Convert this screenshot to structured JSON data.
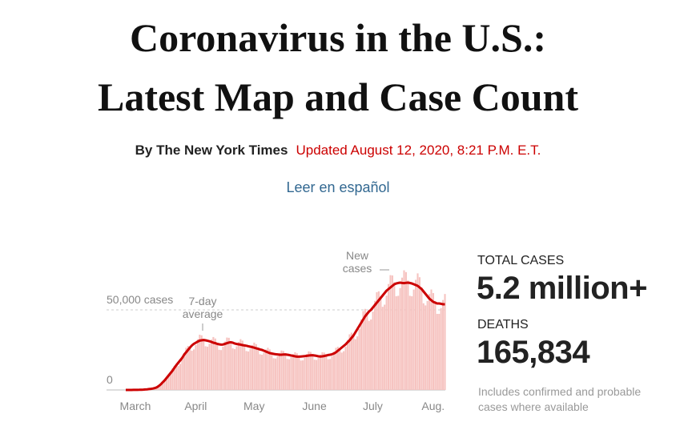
{
  "header": {
    "title": [
      "Coronavirus in the U.S.:",
      "Latest Map and Case Count"
    ],
    "byline": "By The New York Times",
    "updated": "Updated August 12, 2020, 8:21 P.M. E.T.",
    "language_link": "Leer en español"
  },
  "stats": {
    "cases_label": "TOTAL CASES",
    "cases_value": "5.2 million+",
    "deaths_label": "DEATHS",
    "deaths_value": "165,834",
    "note": "Includes confirmed and probable cases where available"
  },
  "chart_data": {
    "type": "bar-line",
    "categories": [
      "March",
      null,
      null,
      null,
      null,
      null,
      null,
      null,
      null,
      null,
      null,
      null,
      null,
      null,
      null,
      null,
      null,
      null,
      null,
      null,
      null,
      null,
      null,
      null,
      null,
      null,
      null,
      null,
      null,
      null,
      null,
      "April",
      null,
      null,
      null,
      null,
      null,
      null,
      null,
      null,
      null,
      null,
      null,
      null,
      null,
      null,
      null,
      null,
      null,
      null,
      null,
      null,
      null,
      null,
      null,
      null,
      null,
      null,
      null,
      null,
      null,
      "May",
      null,
      null,
      null,
      null,
      null,
      null,
      null,
      null,
      null,
      null,
      null,
      null,
      null,
      null,
      null,
      null,
      null,
      null,
      null,
      null,
      null,
      null,
      null,
      null,
      null,
      null,
      null,
      null,
      null,
      null,
      "June",
      null,
      null,
      null,
      null,
      null,
      null,
      null,
      null,
      null,
      null,
      null,
      null,
      null,
      null,
      null,
      null,
      null,
      null,
      null,
      null,
      null,
      null,
      null,
      null,
      null,
      null,
      null,
      null,
      null,
      "July",
      null,
      null,
      null,
      null,
      null,
      null,
      null,
      null,
      null,
      null,
      null,
      null,
      null,
      null,
      null,
      null,
      null,
      null,
      null,
      null,
      null,
      null,
      null,
      null,
      null,
      null,
      null,
      null,
      null,
      null,
      "Aug.",
      null,
      null,
      null,
      null,
      null,
      null,
      null,
      null,
      null,
      null,
      null
    ],
    "series": [
      {
        "name": "New cases",
        "color": "#f6c3c0",
        "values": [
          18,
          19,
          26,
          34,
          44,
          61,
          70,
          88,
          143,
          210,
          336,
          440,
          561,
          616,
          792,
          1140,
          1785,
          2800,
          3850,
          4896,
          5280,
          6600,
          8550,
          11025,
          13440,
          15180,
          15810,
          14960,
          16280,
          19000,
          23100,
          26320,
          27500,
          27030,
          24464,
          25344,
          28025,
          31710,
          34496,
          34100,
          31824,
          27280,
          27016,
          28880,
          31500,
          33040,
          32120,
          29376,
          25080,
          24904,
          26980,
          30240,
          32704,
          32560,
          30396,
          25960,
          25520,
          27265,
          29925,
          31696,
          30800,
          28356,
          24288,
          24024,
          25650,
          28035,
          29568,
          28600,
          26214,
          22264,
          22000,
          23275,
          25200,
          26320,
          25300,
          23256,
          19800,
          19624,
          21090,
          23100,
          24640,
          24310,
          22644,
          19360,
          19184,
          20425,
          22365,
          23520,
          22880,
          21216,
          18392,
          18480,
          20045,
          22365,
          24080,
          23760,
          22134,
          18920,
          18744,
          19950,
          21945,
          23520,
          23320,
          21930,
          19184,
          19360,
          21185,
          23940,
          26320,
          26950,
          26010,
          23320,
          24200,
          27075,
          31290,
          34720,
          35750,
          34680,
          31680,
          33440,
          38000,
          44100,
          49280,
          50600,
          48450,
          43120,
          44000,
          48925,
          55650,
          61040,
          61600,
          58650,
          51920,
          53240,
          58900,
          66150,
          71680,
          71500,
          67320,
          58520,
          58784,
          63650,
          70140,
          74704,
          73590,
          68340,
          58784,
          58520,
          62700,
          68775,
          72800,
          70400,
          64260,
          54120,
          52800,
          55575,
          59850,
          62720,
          60500,
          55590,
          47520,
          47520,
          51110,
          56175,
          59920
        ]
      },
      {
        "name": "7-day average",
        "color": "#cc0000",
        "values": [
          20,
          20,
          25,
          30,
          40,
          60,
          80,
          100,
          150,
          200,
          300,
          400,
          550,
          700,
          900,
          1200,
          1700,
          2500,
          3500,
          4800,
          6000,
          7500,
          9000,
          10500,
          12000,
          13800,
          15500,
          17000,
          18500,
          20000,
          22000,
          23500,
          25000,
          26500,
          27800,
          28800,
          29500,
          30200,
          30800,
          31000,
          31200,
          31000,
          30700,
          30400,
          30000,
          29500,
          29200,
          28800,
          28500,
          28300,
          28400,
          28800,
          29200,
          29600,
          29800,
          29500,
          29000,
          28700,
          28500,
          28300,
          28000,
          27800,
          27600,
          27300,
          27000,
          26700,
          26400,
          26000,
          25700,
          25300,
          25000,
          24500,
          24000,
          23500,
          23000,
          22800,
          22500,
          22300,
          22200,
          22000,
          22000,
          22100,
          22200,
          22000,
          21800,
          21500,
          21300,
          21000,
          20800,
          20800,
          20900,
          21000,
          21100,
          21300,
          21500,
          21600,
          21700,
          21500,
          21300,
          21000,
          20900,
          21000,
          21200,
          21500,
          21800,
          22000,
          22300,
          22800,
          23500,
          24500,
          25500,
          26500,
          27500,
          28500,
          29800,
          31000,
          32500,
          34000,
          36000,
          38000,
          40000,
          42000,
          44000,
          46000,
          47500,
          49000,
          50000,
          51500,
          53000,
          54500,
          56000,
          57500,
          59000,
          60500,
          62000,
          63000,
          64000,
          65000,
          66000,
          66500,
          66800,
          67000,
          66800,
          66700,
          66900,
          67000,
          66800,
          66500,
          66000,
          65500,
          65000,
          64000,
          63000,
          61500,
          60000,
          58500,
          57000,
          56000,
          55000,
          54500,
          54000,
          54000,
          53800,
          53500,
          53500
        ]
      }
    ],
    "ylim": [
      0,
      80000
    ],
    "yticks": [
      0,
      {
        "value": 50000,
        "label": "50,000 cases"
      }
    ],
    "grid": true
  }
}
